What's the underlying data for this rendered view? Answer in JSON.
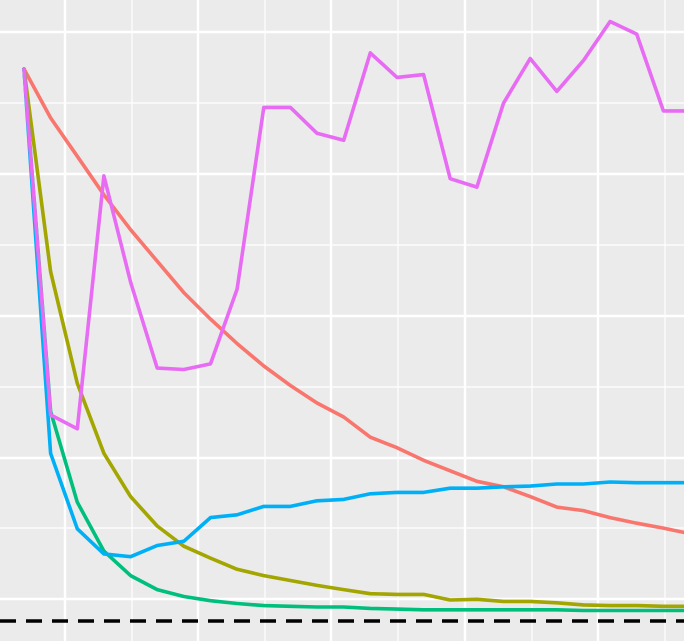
{
  "chart_data": {
    "type": "line",
    "title": "",
    "xlabel": "",
    "ylabel": "",
    "x": [
      1,
      2,
      3,
      4,
      5,
      6,
      7,
      8,
      9,
      10,
      11,
      12,
      13,
      14,
      15,
      16,
      17,
      18,
      19,
      20,
      21,
      22,
      23,
      24,
      25,
      26
    ],
    "xlim": [
      0.0,
      26.5
    ],
    "ylim": [
      -0.01,
      0.9
    ],
    "grid": true,
    "legend": "none",
    "background": "#ebebeb",
    "grid_color": "#ffffff",
    "reference_line": {
      "y": 0,
      "style": "dashed",
      "color": "#000000"
    },
    "series": [
      {
        "color": "#f8766d",
        "values": [
          0.79,
          0.72,
          0.665,
          0.61,
          0.56,
          0.515,
          0.47,
          0.432,
          0.397,
          0.365,
          0.337,
          0.312,
          0.292,
          0.263,
          0.248,
          0.23,
          0.215,
          0.2,
          0.192,
          0.178,
          0.163,
          0.158,
          0.148,
          0.14,
          0.133,
          0.125
        ]
      },
      {
        "color": "#a3a500",
        "values": [
          0.79,
          0.5,
          0.34,
          0.24,
          0.178,
          0.136,
          0.107,
          0.09,
          0.074,
          0.065,
          0.058,
          0.051,
          0.045,
          0.039,
          0.038,
          0.038,
          0.03,
          0.031,
          0.028,
          0.028,
          0.026,
          0.023,
          0.022,
          0.022,
          0.021,
          0.021
        ]
      },
      {
        "color": "#00bf7d",
        "values": [
          0.79,
          0.3,
          0.17,
          0.1,
          0.065,
          0.045,
          0.035,
          0.029,
          0.025,
          0.022,
          0.021,
          0.02,
          0.02,
          0.018,
          0.017,
          0.016,
          0.016,
          0.016,
          0.016,
          0.016,
          0.016,
          0.015,
          0.015,
          0.015,
          0.015,
          0.015
        ]
      },
      {
        "color": "#00b0f6",
        "values": [
          0.79,
          0.24,
          0.132,
          0.096,
          0.092,
          0.108,
          0.114,
          0.148,
          0.152,
          0.164,
          0.164,
          0.172,
          0.174,
          0.182,
          0.184,
          0.184,
          0.19,
          0.19,
          0.192,
          0.193,
          0.196,
          0.196,
          0.199,
          0.198,
          0.198,
          0.198
        ]
      },
      {
        "color": "#e76bf3",
        "values": [
          0.79,
          0.295,
          0.275,
          0.637,
          0.485,
          0.362,
          0.36,
          0.368,
          0.475,
          0.735,
          0.735,
          0.698,
          0.688,
          0.813,
          0.778,
          0.782,
          0.633,
          0.621,
          0.741,
          0.805,
          0.758,
          0.802,
          0.858,
          0.84,
          0.73,
          0.73
        ]
      }
    ]
  }
}
